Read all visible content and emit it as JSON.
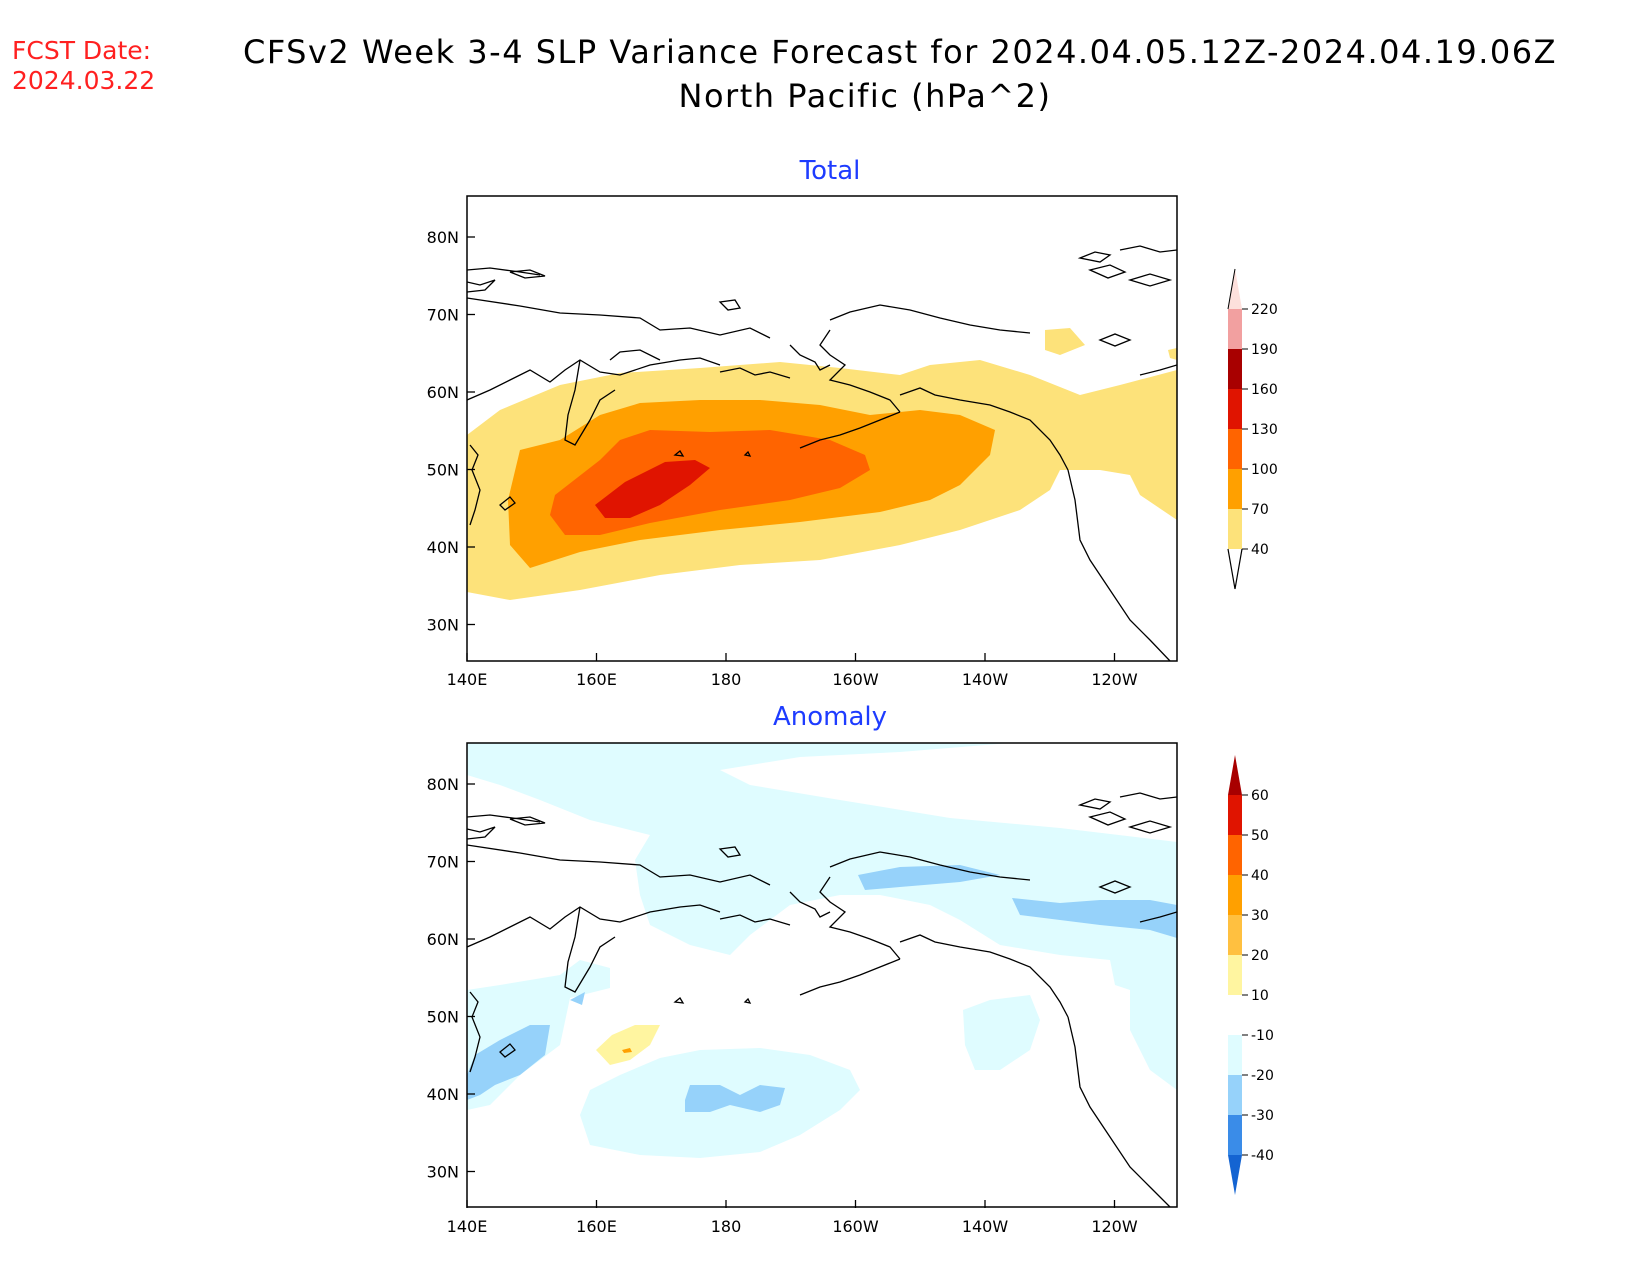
{
  "header": {
    "fcst_label": "FCST Date:",
    "fcst_date": "2024.03.22",
    "title_line1": "CFSv2 Week 3-4 SLP Variance Forecast for 2024.04.05.12Z-2024.04.19.06Z",
    "title_line2": "North Pacific (hPa^2)"
  },
  "axes": {
    "lat_labels": [
      "80N",
      "70N",
      "60N",
      "50N",
      "40N",
      "30N"
    ],
    "lon_labels": [
      "140E",
      "160E",
      "180",
      "160W",
      "140W",
      "120W"
    ]
  },
  "panels": [
    {
      "title": "Total",
      "colorbar": {
        "labels": [
          "220",
          "190",
          "160",
          "130",
          "100",
          "70",
          "40"
        ],
        "colors": [
          "#fde0dc",
          "#f2a0a0",
          "#a80000",
          "#e01400",
          "#ff6400",
          "#ffa000",
          "#fde27a"
        ]
      }
    },
    {
      "title": "Anomaly",
      "colorbar": {
        "labels": [
          "60",
          "50",
          "40",
          "30",
          "20",
          "10",
          "-10",
          "-20",
          "-30",
          "-40"
        ],
        "colors": [
          "#a80000",
          "#e01400",
          "#ff6400",
          "#ffa000",
          "#ffc040",
          "#fff5a0",
          "#ffffff",
          "#dffcff",
          "#96d2fa",
          "#3a8ce8",
          "#1464d2"
        ]
      }
    }
  ],
  "colors": {
    "title_blue": "#1e3cff",
    "fcst_red": "#ff2020"
  }
}
